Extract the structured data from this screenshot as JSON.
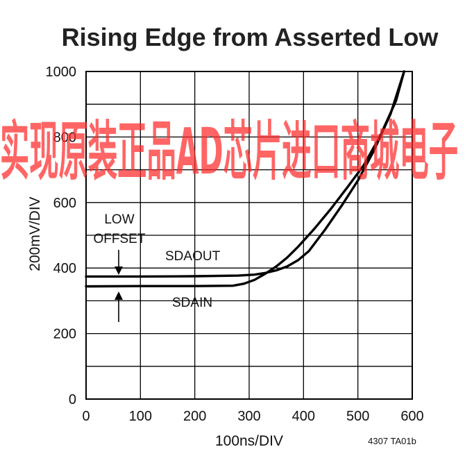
{
  "chart_data": {
    "type": "line",
    "title": "Rising Edge from Asserted Low",
    "xlabel": "100ns/DIV",
    "ylabel": "200mV/DIV",
    "xlim": [
      0,
      600
    ],
    "ylim": [
      0,
      1000
    ],
    "x_ticks": [
      "0",
      "100",
      "200",
      "300",
      "400",
      "500",
      "600"
    ],
    "y_ticks": [
      "0",
      "200",
      "400",
      "600",
      "800",
      "1000"
    ],
    "grid": true,
    "series": [
      {
        "name": "SDAOUT",
        "x": [
          0,
          100,
          200,
          280,
          310,
          330,
          350,
          370,
          390,
          410,
          440,
          470,
          500,
          530,
          560,
          585
        ],
        "y": [
          374,
          374,
          375,
          377,
          380,
          385,
          393,
          405,
          424,
          452,
          518,
          590,
          667,
          760,
          870,
          1000
        ]
      },
      {
        "name": "SDAIN",
        "x": [
          0,
          100,
          200,
          270,
          290,
          310,
          330,
          350,
          370,
          390,
          420,
          450,
          480,
          510,
          540,
          570,
          585
        ],
        "y": [
          344,
          345,
          345,
          346,
          352,
          364,
          383,
          405,
          432,
          465,
          520,
          580,
          645,
          712,
          800,
          910,
          1000
        ]
      }
    ],
    "annotations": {
      "offset_label_line1": "LOW",
      "offset_label_line2": "OFFSET",
      "sdaout_label": "SDAOUT",
      "sdain_label": "SDAIN",
      "figure_code": "4307 TA01b"
    }
  },
  "watermark_text": "实现原装正品AD芯片进口商城电子",
  "colors": {
    "line": "#000000",
    "grid": "#000000",
    "watermark": "#ff2a2a"
  }
}
